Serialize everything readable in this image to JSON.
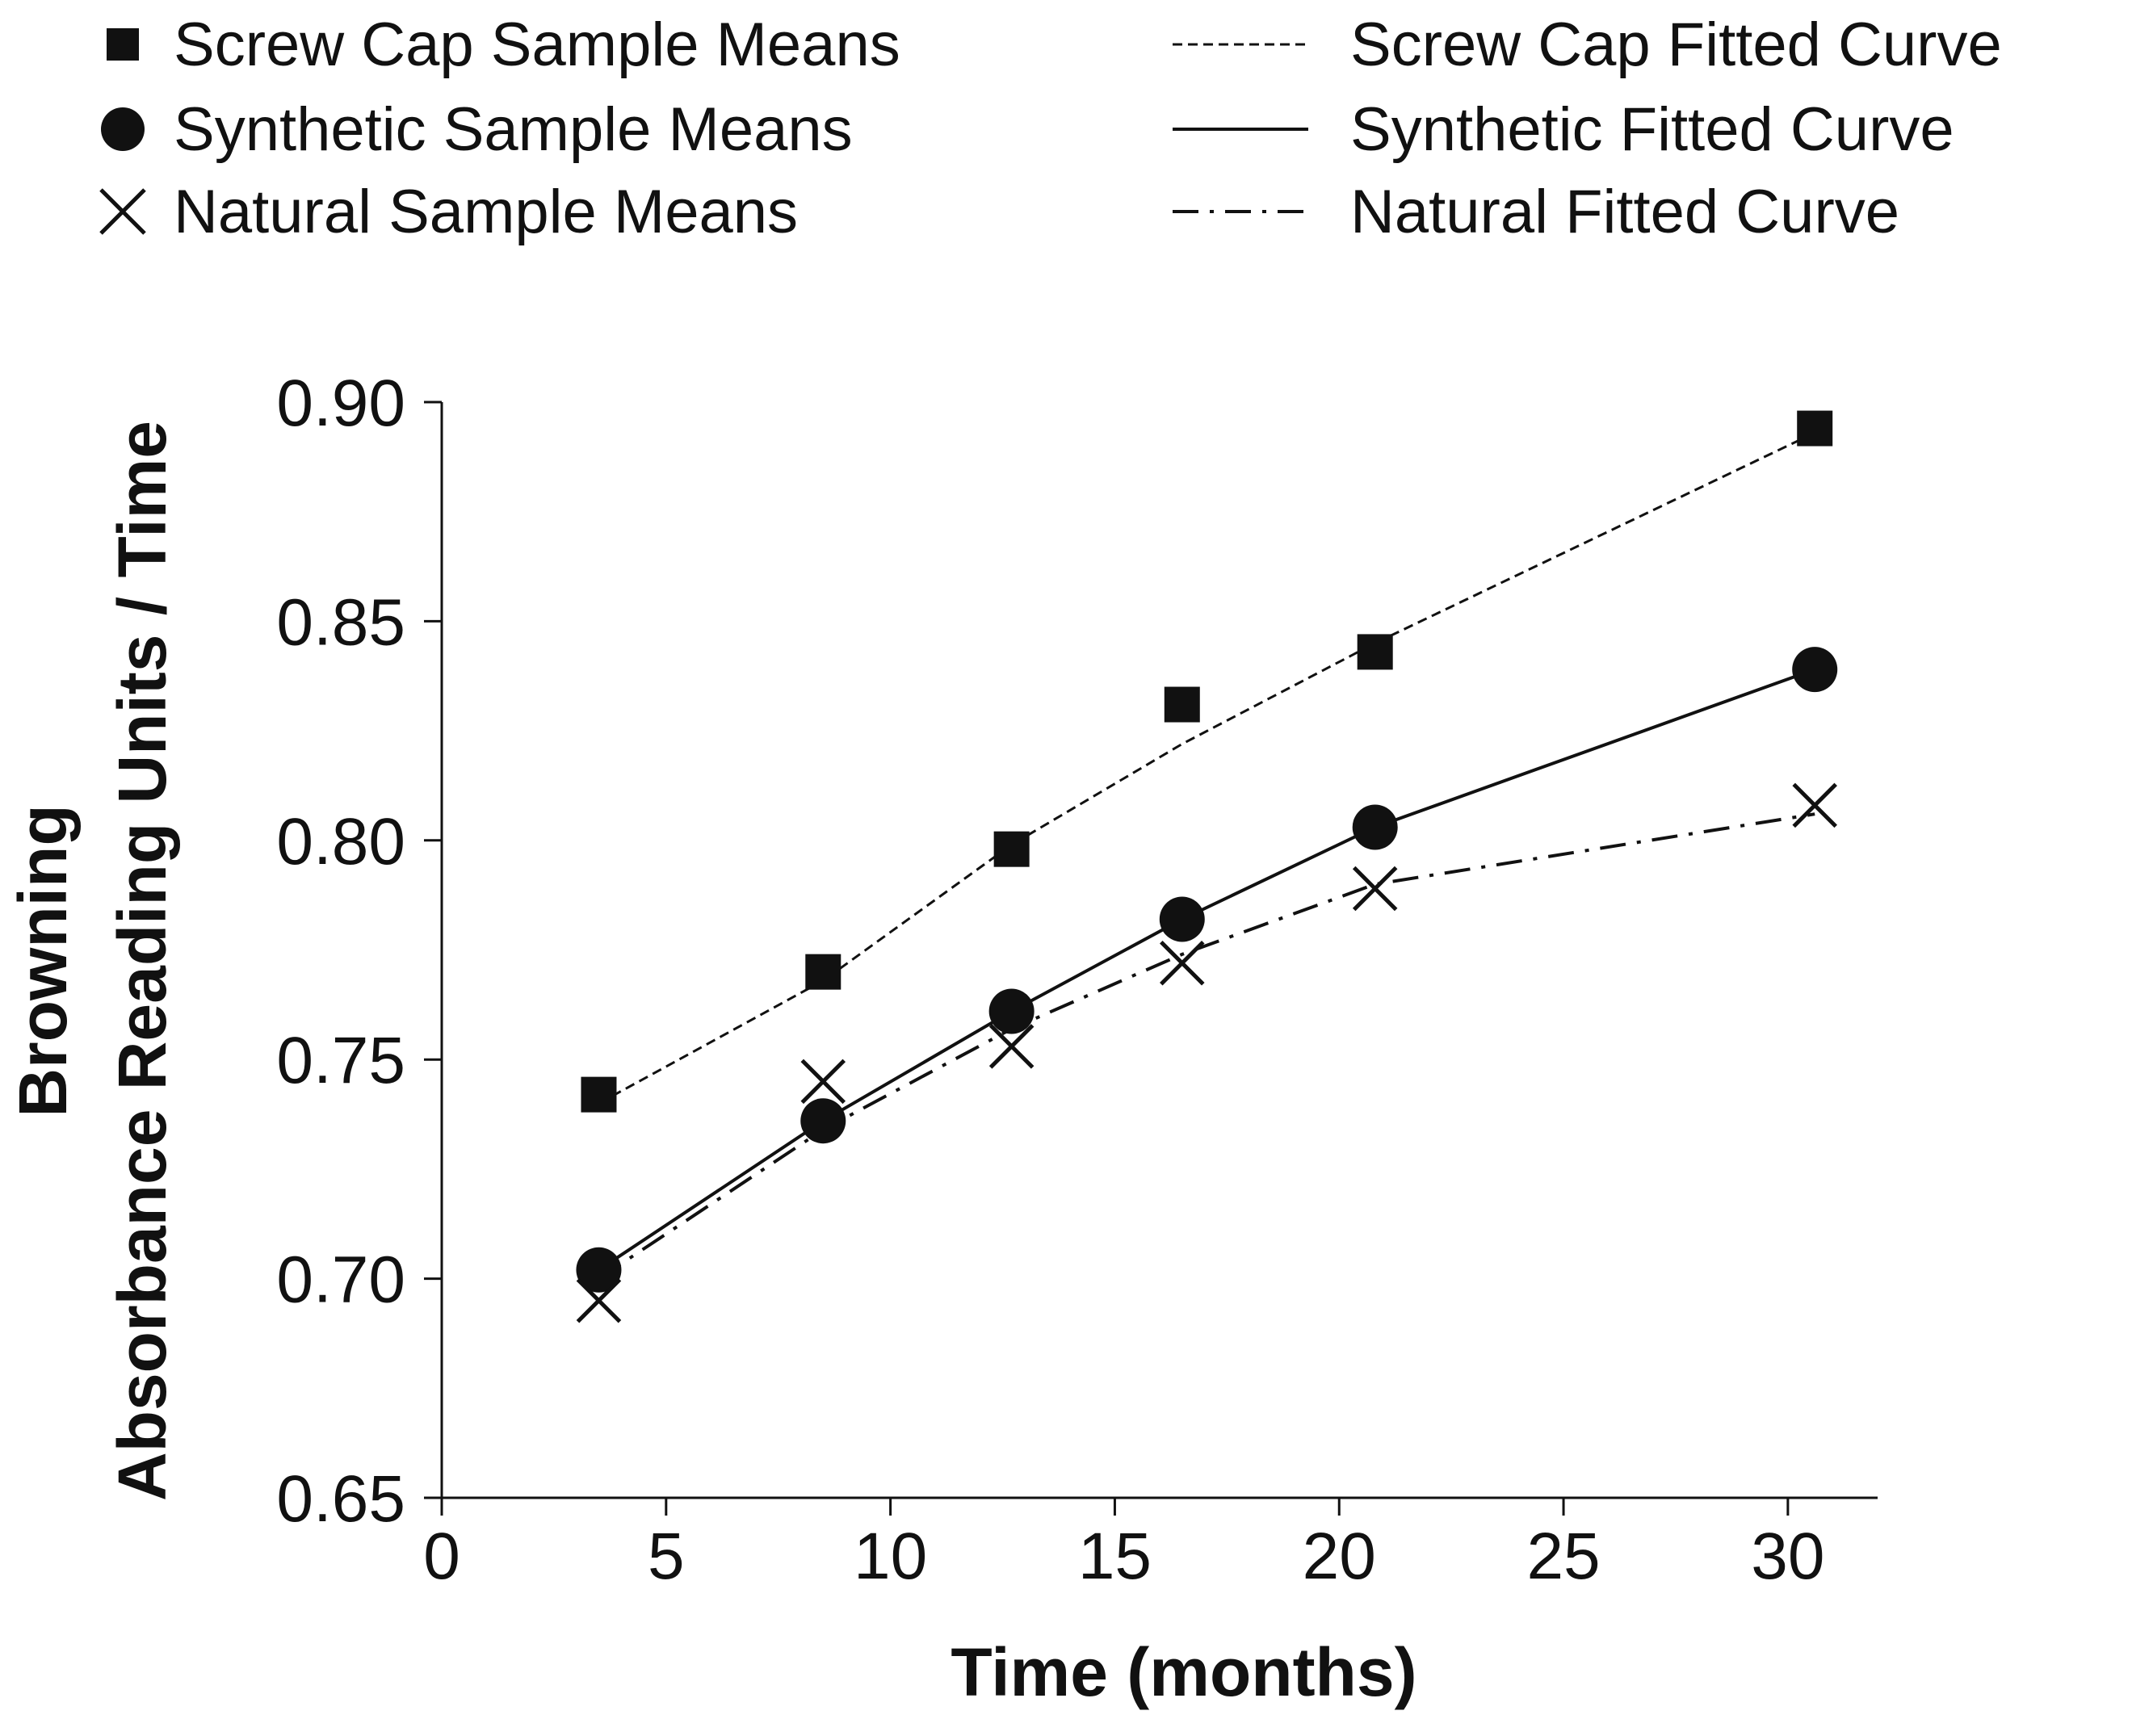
{
  "chart_data": {
    "type": "scatter",
    "title": "",
    "xlabel": "Time (months)",
    "ylabel": [
      "Browning",
      "Absorbance Reading Units / Time"
    ],
    "xlim": [
      0,
      32
    ],
    "ylim": [
      0.65,
      0.9
    ],
    "xticks": [
      0,
      5,
      10,
      15,
      20,
      25,
      30
    ],
    "xtick_labels": [
      "0",
      "5",
      "10",
      "15",
      "20",
      "25",
      "30"
    ],
    "yticks": [
      0.65,
      0.7,
      0.75,
      0.8,
      0.85,
      0.9
    ],
    "ytick_labels": [
      "0.65",
      "0.70",
      "0.75",
      "0.80",
      "0.85",
      "0.90"
    ],
    "grid": false,
    "legend_position": "top",
    "series": [
      {
        "name": "Screw Cap Sample Means",
        "marker": "square",
        "x": [
          3.5,
          8.5,
          12.7,
          16.5,
          20.8,
          30.6
        ],
        "y": [
          0.742,
          0.77,
          0.798,
          0.831,
          0.843,
          0.894
        ],
        "fit_name": "Screw Cap Fitted Curve",
        "fit_style": "dashed",
        "fit_y": [
          0.74,
          0.768,
          0.799,
          0.822,
          0.845,
          0.893
        ]
      },
      {
        "name": "Synthetic Sample Means",
        "marker": "circle",
        "x": [
          3.5,
          8.5,
          12.7,
          16.5,
          20.8,
          30.6
        ],
        "y": [
          0.702,
          0.736,
          0.761,
          0.782,
          0.803,
          0.839
        ],
        "fit_name": "Synthetic Fitted Curve",
        "fit_style": "solid",
        "fit_y": [
          0.702,
          0.736,
          0.761,
          0.782,
          0.803,
          0.839
        ]
      },
      {
        "name": "Natural Sample Means",
        "marker": "x",
        "x": [
          3.5,
          8.5,
          12.7,
          16.5,
          20.8,
          30.6
        ],
        "y": [
          0.695,
          0.745,
          0.753,
          0.772,
          0.789,
          0.808
        ],
        "fit_name": "Natural Fitted Curve",
        "fit_style": "dashdot",
        "fit_y": [
          0.7,
          0.734,
          0.757,
          0.774,
          0.79,
          0.806
        ]
      }
    ]
  },
  "colors": {
    "ink": "#111111",
    "background": "#ffffff"
  }
}
